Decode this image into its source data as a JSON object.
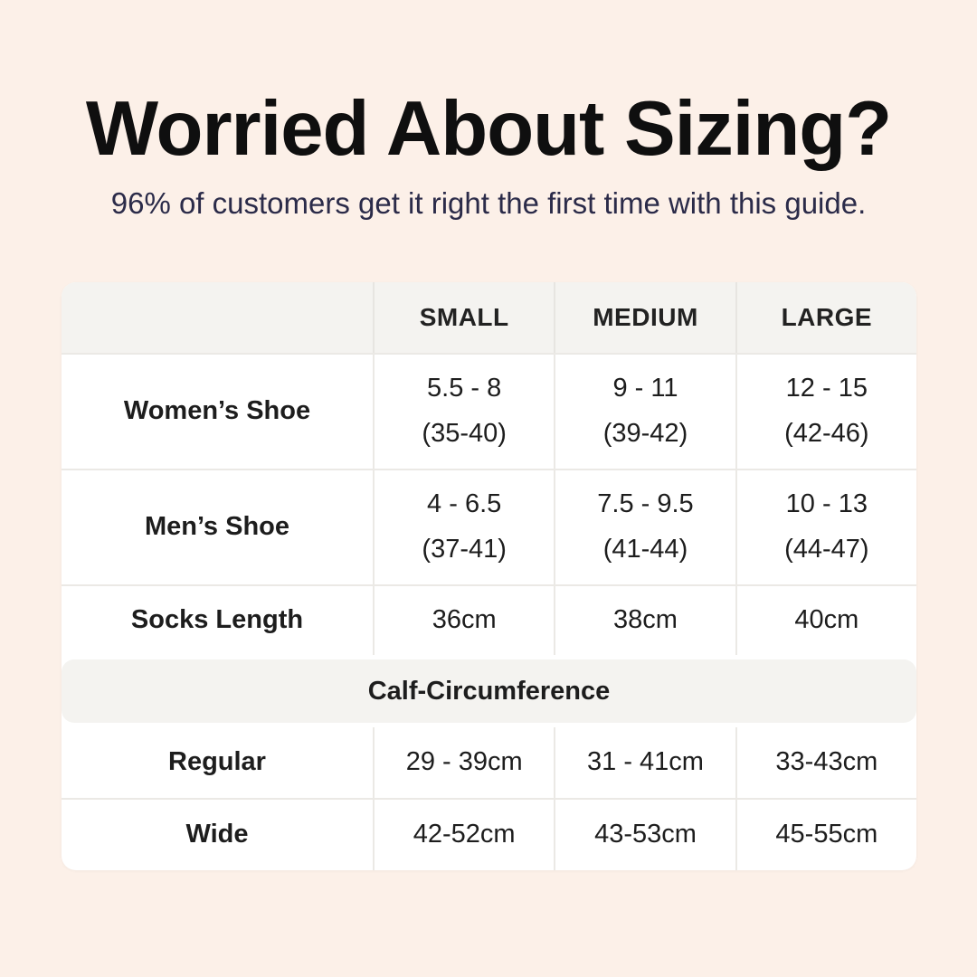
{
  "page": {
    "title": "Worried About Sizing?",
    "subtitle": "96% of customers get it right the first time with this guide."
  },
  "colors": {
    "background": "#fcf0e8",
    "card": "#ffffff",
    "band": "#f4f3f0",
    "border": "#ebe9e5",
    "title_text": "#0f0f0f",
    "subtitle_text": "#2b2b49",
    "table_text": "#1d1d1d"
  },
  "table": {
    "headers": {
      "col1": "SMALL",
      "col2": "MEDIUM",
      "col3": "LARGE"
    },
    "rows": [
      {
        "label": "Women’s Shoe",
        "values": [
          {
            "line1": "5.5 - 8",
            "line2": "(35-40)"
          },
          {
            "line1": "9 - 11",
            "line2": "(39-42)"
          },
          {
            "line1": "12 - 15",
            "line2": "(42-46)"
          }
        ]
      },
      {
        "label": "Men’s Shoe",
        "values": [
          {
            "line1": "4 - 6.5",
            "line2": "(37-41)"
          },
          {
            "line1": "7.5 - 9.5",
            "line2": "(41-44)"
          },
          {
            "line1": "10 - 13",
            "line2": "(44-47)"
          }
        ]
      },
      {
        "label": "Socks Length",
        "values": [
          {
            "line1": "36cm"
          },
          {
            "line1": "38cm"
          },
          {
            "line1": "40cm"
          }
        ]
      }
    ],
    "section_header": "Calf-Circumference",
    "section_rows": [
      {
        "label": "Regular",
        "values": [
          {
            "line1": "29 - 39cm"
          },
          {
            "line1": "31 - 41cm"
          },
          {
            "line1": "33-43cm"
          }
        ]
      },
      {
        "label": "Wide",
        "values": [
          {
            "line1": "42-52cm"
          },
          {
            "line1": "43-53cm"
          },
          {
            "line1": "45-55cm"
          }
        ]
      }
    ]
  },
  "chart_data": {
    "type": "table",
    "title": "Worried About Sizing?",
    "subtitle": "96% of customers get it right the first time with this guide.",
    "columns": [
      "",
      "SMALL",
      "MEDIUM",
      "LARGE"
    ],
    "rows": [
      [
        "Women’s Shoe",
        "5.5 - 8 (35-40)",
        "9 - 11 (39-42)",
        "12 - 15 (42-46)"
      ],
      [
        "Men’s Shoe",
        "4 - 6.5 (37-41)",
        "7.5 - 9.5 (41-44)",
        "10 - 13 (44-47)"
      ],
      [
        "Socks Length",
        "36cm",
        "38cm",
        "40cm"
      ],
      [
        "Calf-Circumference",
        "",
        "",
        ""
      ],
      [
        "Regular",
        "29 - 39cm",
        "31 - 41cm",
        "33-43cm"
      ],
      [
        "Wide",
        "42-52cm",
        "43-53cm",
        "45-55cm"
      ]
    ],
    "layout_hints": {
      "section_header_row_index": 3,
      "header_background": "#f4f3f0",
      "grid": "light-gray-dividers"
    }
  }
}
